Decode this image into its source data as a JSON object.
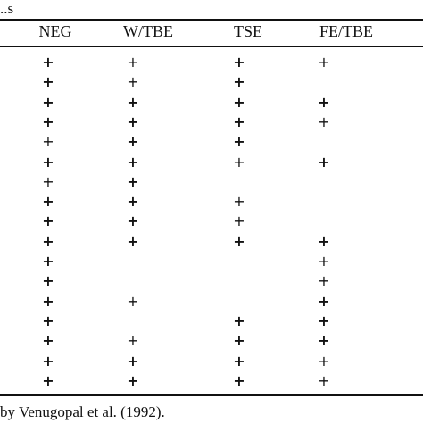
{
  "top_fragment": "..s",
  "table": {
    "headers": [
      "NEG",
      "W/TBE",
      "TSE",
      "FE/TBE"
    ],
    "rows": [
      [
        "+",
        "+",
        "+",
        "+"
      ],
      [
        "+",
        "+",
        "+",
        ""
      ],
      [
        "+",
        "+",
        "+",
        "+"
      ],
      [
        "+",
        "+",
        "+",
        "+"
      ],
      [
        "+",
        "+",
        "+",
        ""
      ],
      [
        "+",
        "+",
        "+",
        "+"
      ],
      [
        "+",
        "+",
        "",
        ""
      ],
      [
        "+",
        "+",
        "+",
        ""
      ],
      [
        "+",
        "+",
        "+",
        ""
      ],
      [
        "+",
        "+",
        "+",
        "+"
      ],
      [
        "+",
        "",
        "",
        "+"
      ],
      [
        "+",
        "",
        "",
        "+"
      ],
      [
        "+",
        "+",
        "",
        "+"
      ],
      [
        "+",
        "",
        "+",
        "+"
      ],
      [
        "+",
        "+",
        "+",
        "+"
      ],
      [
        "+",
        "+",
        "+",
        "+"
      ],
      [
        "+",
        "+",
        "+",
        "+"
      ]
    ]
  },
  "footnote": "by Venugopal et al. (1992)."
}
